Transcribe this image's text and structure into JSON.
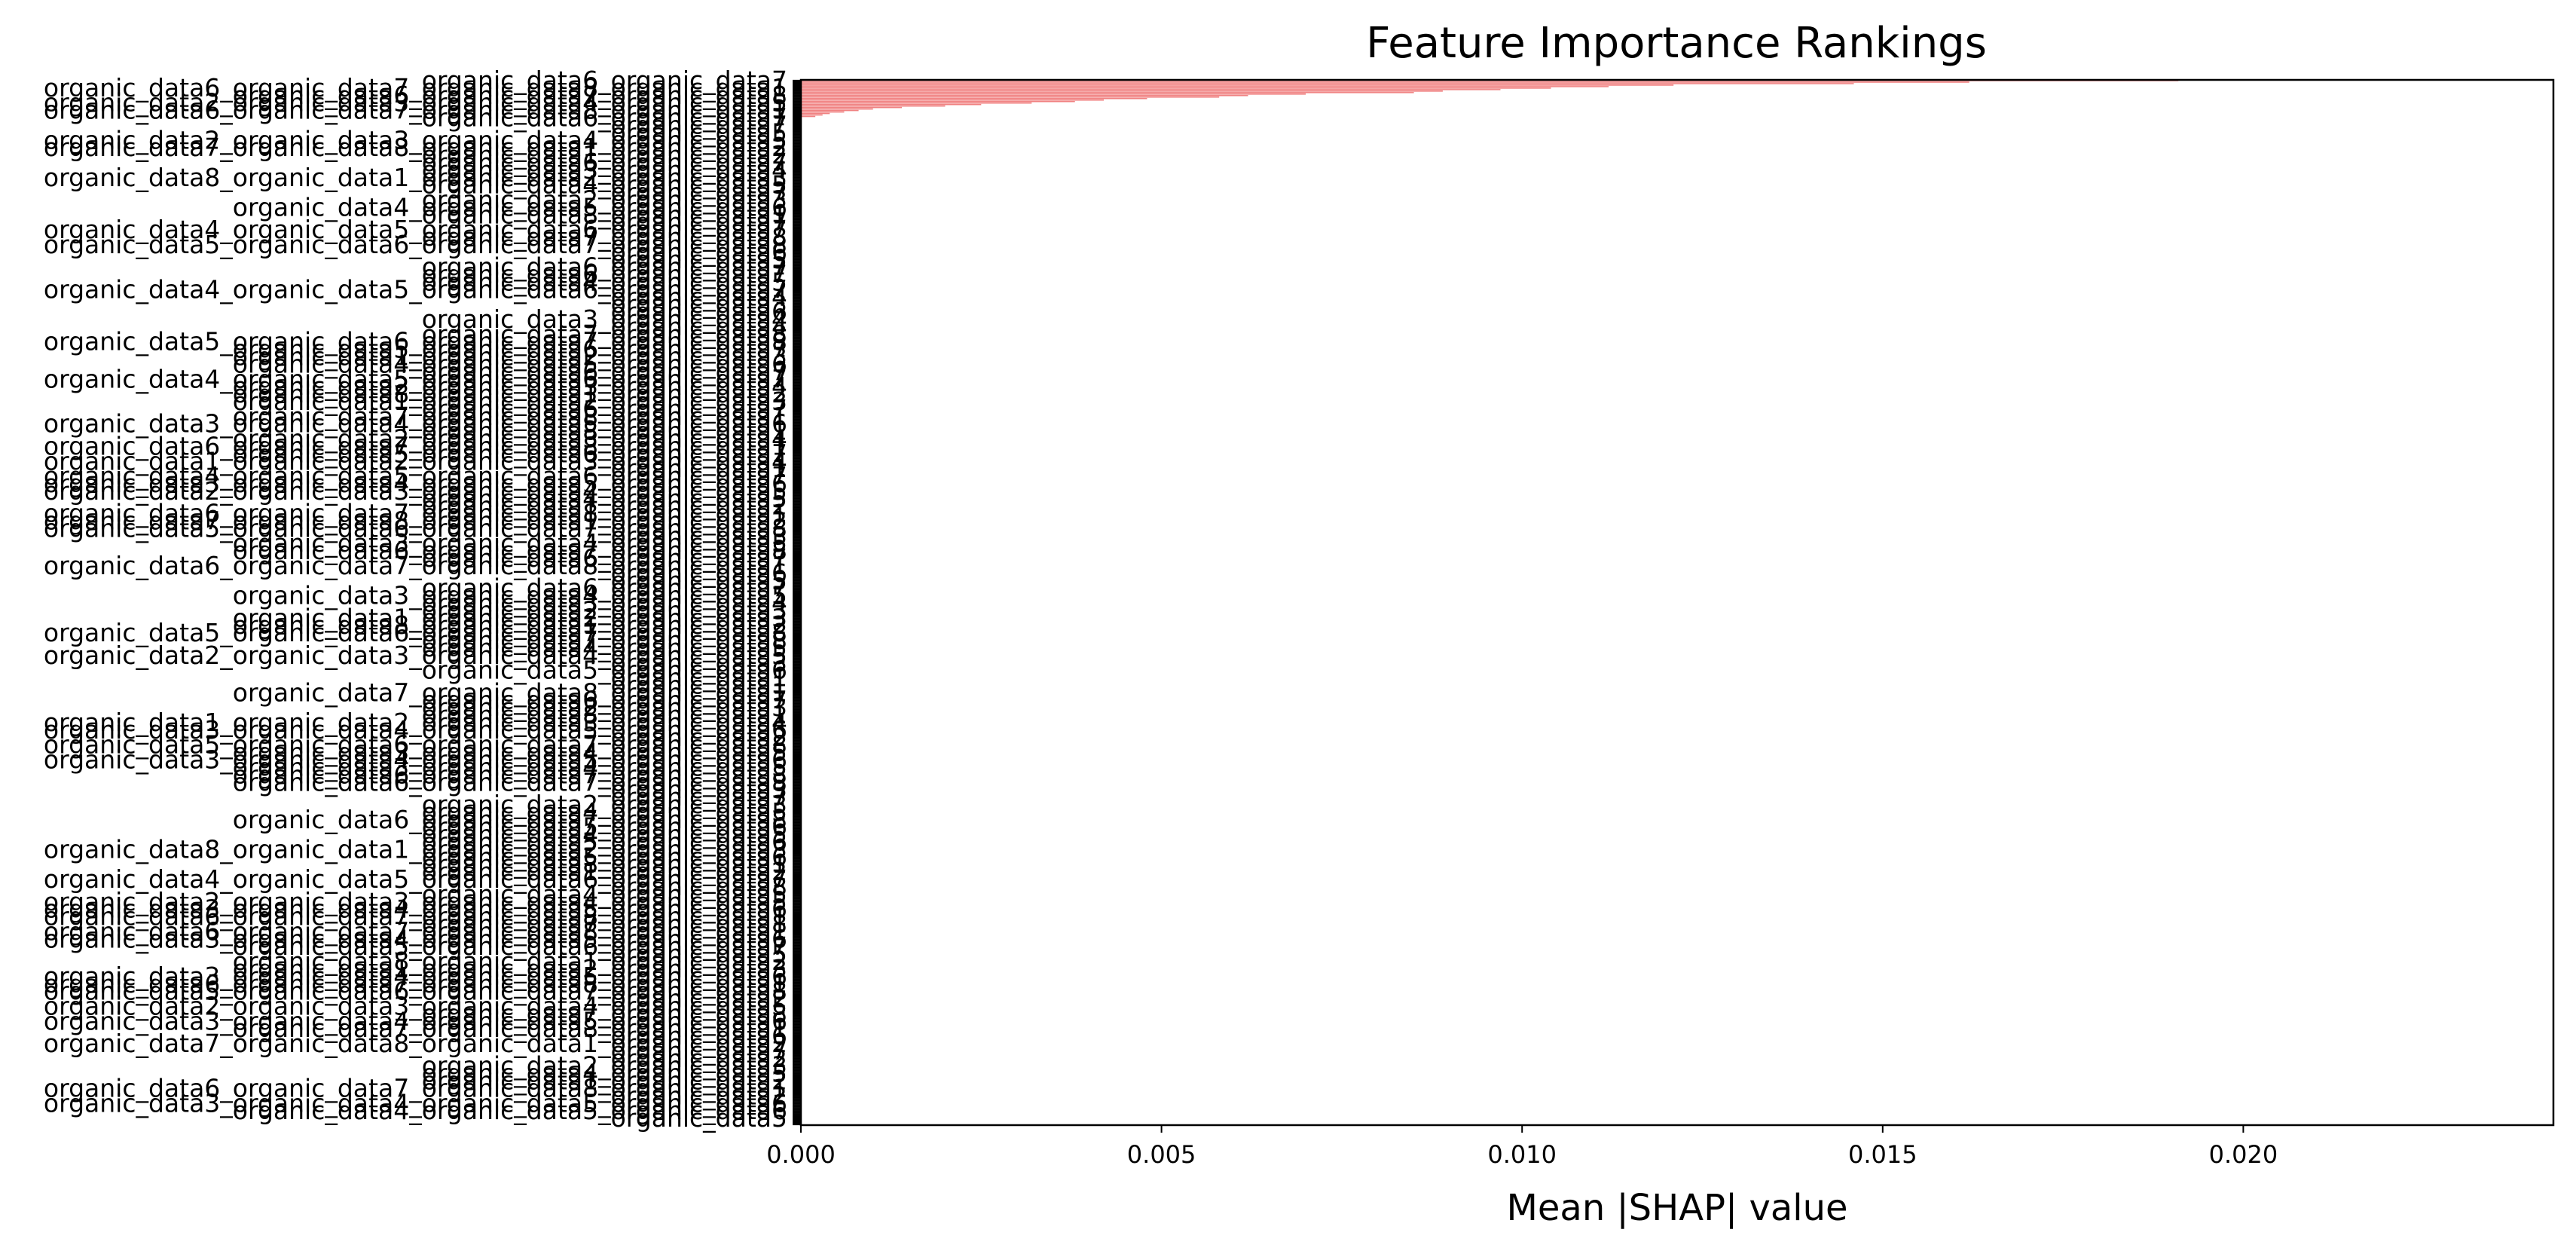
{
  "chart_data": {
    "type": "bar",
    "orientation": "horizontal",
    "title": "Feature Importance Rankings",
    "xlabel": "Mean |SHAP| value",
    "ylabel": "",
    "xlim": [
      0,
      0.0243
    ],
    "x_ticks": [
      0.0,
      0.005,
      0.01,
      0.015,
      0.02
    ],
    "x_tick_labels": [
      "0.000",
      "0.005",
      "0.010",
      "0.015",
      "0.020"
    ],
    "bar_color": "#f08080",
    "bar_edge_color": "#000000",
    "grid": false,
    "legend": "none",
    "top_values": [
      0.0191,
      0.0162,
      0.0146,
      0.0121,
      0.0112,
      0.0104,
      0.0097,
      0.0089,
      0.0085,
      0.007,
      0.0062,
      0.0058,
      0.0048,
      0.0042,
      0.0038,
      0.0032,
      0.0025,
      0.002,
      0.0014,
      0.001,
      0.0008,
      0.0006,
      0.0004,
      0.0003,
      0.0002
    ],
    "remaining_bar_count": 675,
    "remaining_value": 0.0,
    "visible_feature_labels": [
      "organic_data1",
      "organic_data2",
      "organic_data3",
      "organic_data4",
      "organic_data5",
      "organic_data6",
      "organic_data7",
      "organic_data8"
    ]
  }
}
